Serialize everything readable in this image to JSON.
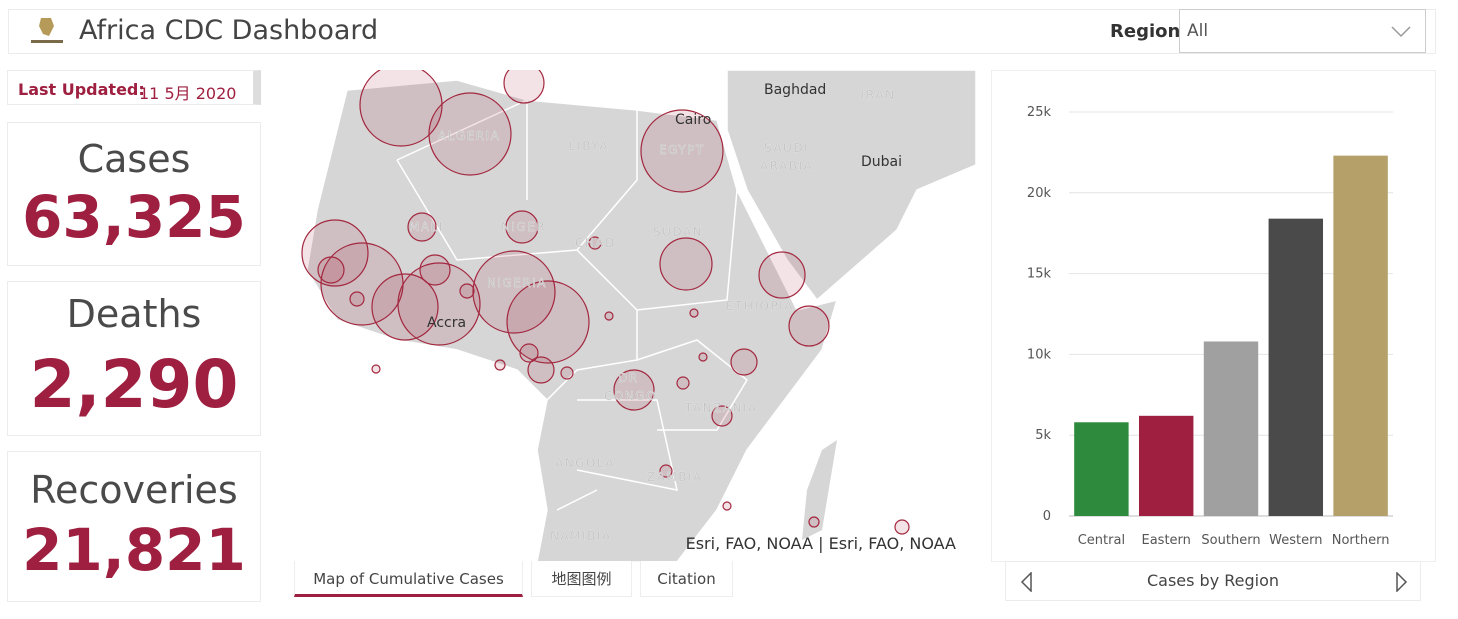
{
  "header": {
    "title": "Africa CDC Dashboard",
    "region_label": "Region",
    "region_value": "All"
  },
  "last_updated": {
    "label": "Last Updated:",
    "value": "11 5月 2020"
  },
  "stats": [
    {
      "label": "Cases",
      "value": "63,325"
    },
    {
      "label": "Deaths",
      "value": "2,290"
    },
    {
      "label": "Recoveries",
      "value": "21,821"
    }
  ],
  "map": {
    "labels": [
      "Baghdad",
      "IRAN",
      "Cairo",
      "LIBYA",
      "EGYPT",
      "ALGERIA",
      "SAUDI",
      "ARABIA",
      "Dubai",
      "MALI",
      "NIGER",
      "CHAD",
      "SUDAN",
      "NIGERIA",
      "ETHIOPIA",
      "Accra",
      "DR",
      "CONGO",
      "TANZANIA",
      "ANGOLA",
      "ZAMBIA",
      "NAMIBIA"
    ],
    "attribution": "Esri, FAO, NOAA | Esri, FAO, NOAA"
  },
  "tabs": [
    "Map of Cumulative Cases",
    "地图图例",
    "Citation"
  ],
  "chart_caption": "Cases by Region",
  "chart_data": {
    "type": "bar",
    "categories": [
      "Central",
      "Eastern",
      "Southern",
      "Western",
      "Northern"
    ],
    "values": [
      5800,
      6200,
      10800,
      18400,
      22300
    ],
    "colors": [
      "#2e8b3e",
      "#9e1f3f",
      "#a0a0a0",
      "#4a4a4a",
      "#b5a06a"
    ],
    "ylim": [
      0,
      25000
    ],
    "yticks": [
      0,
      {
        "value": 5000,
        "label": "5k"
      },
      {
        "value": 10000,
        "label": "10k"
      },
      {
        "value": 15000,
        "label": "15k"
      },
      {
        "value": 20000,
        "label": "20k"
      },
      {
        "value": 25000,
        "label": "25k"
      }
    ],
    "grid": true
  }
}
